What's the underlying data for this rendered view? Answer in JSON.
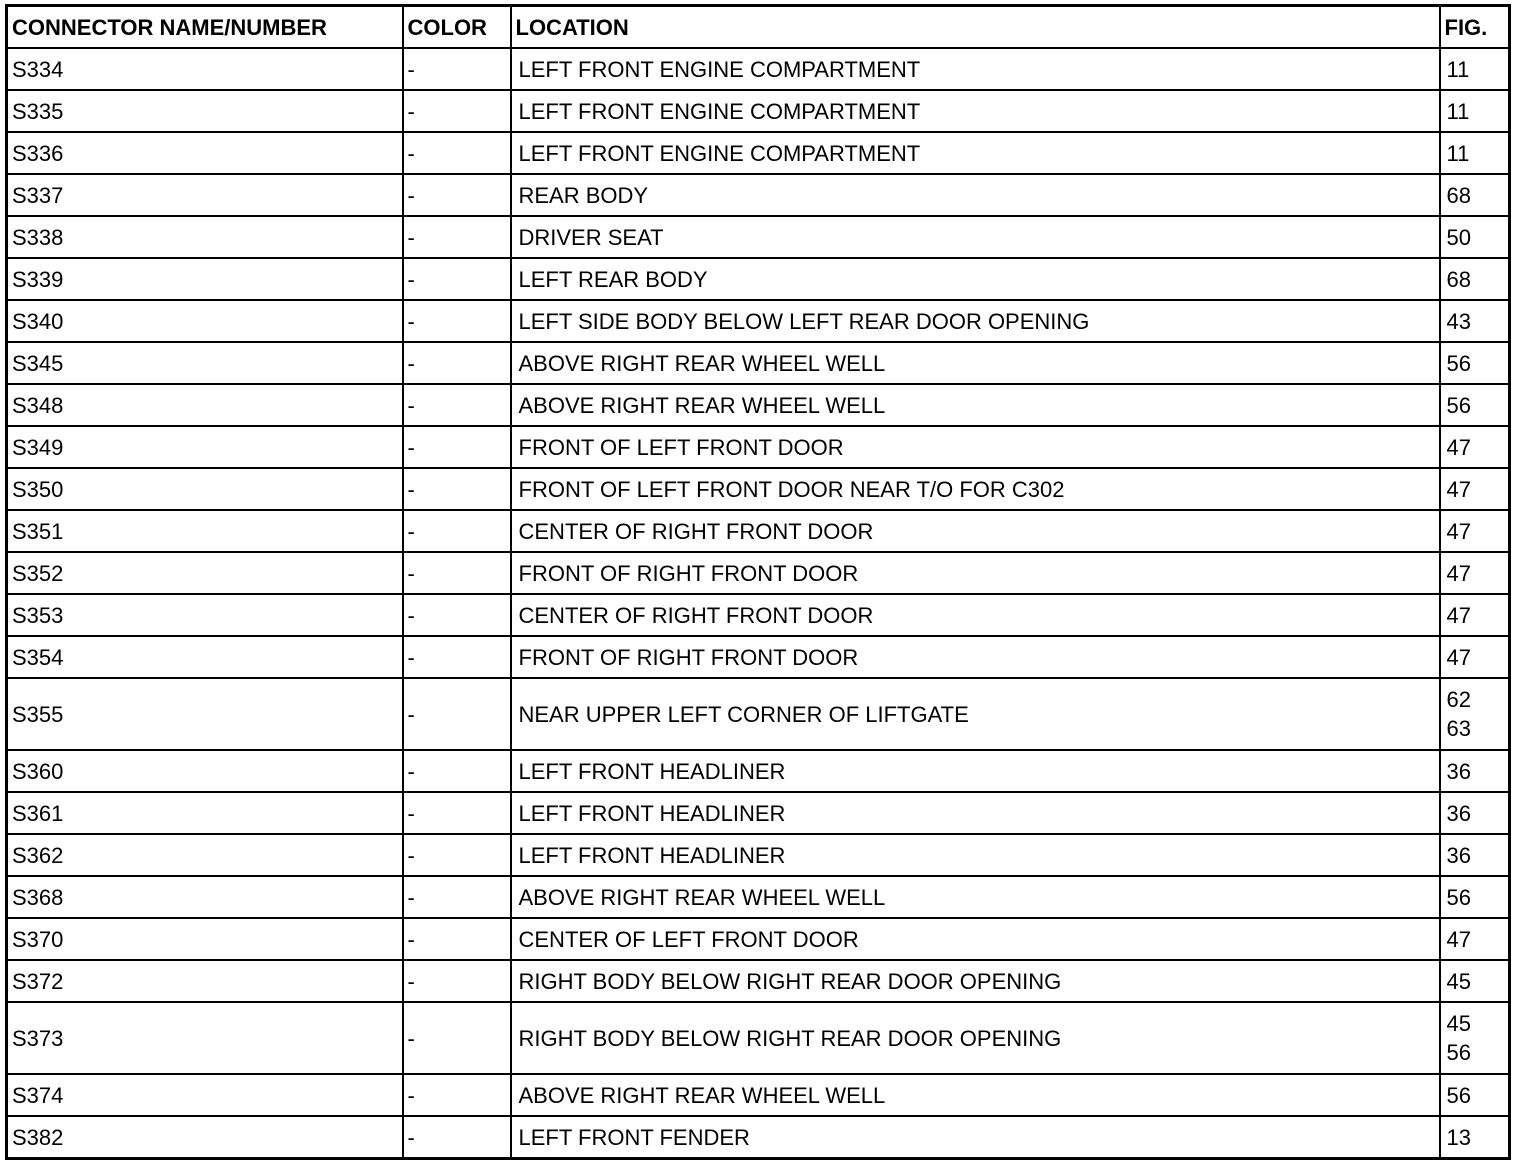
{
  "headers": {
    "name": "CONNECTOR NAME/NUMBER",
    "color": "COLOR",
    "location": "LOCATION",
    "fig": "FIG."
  },
  "rows": [
    {
      "name": "S334",
      "color": "-",
      "location": "LEFT FRONT ENGINE COMPARTMENT",
      "fig": [
        "11"
      ]
    },
    {
      "name": "S335",
      "color": "-",
      "location": "LEFT FRONT ENGINE COMPARTMENT",
      "fig": [
        "11"
      ]
    },
    {
      "name": "S336",
      "color": "-",
      "location": "LEFT FRONT ENGINE COMPARTMENT",
      "fig": [
        "11"
      ]
    },
    {
      "name": "S337",
      "color": "-",
      "location": "REAR BODY",
      "fig": [
        "68"
      ]
    },
    {
      "name": "S338",
      "color": "-",
      "location": "DRIVER SEAT",
      "fig": [
        "50"
      ]
    },
    {
      "name": "S339",
      "color": "-",
      "location": "LEFT REAR BODY",
      "fig": [
        "68"
      ]
    },
    {
      "name": "S340",
      "color": "-",
      "location": "LEFT SIDE BODY BELOW LEFT REAR DOOR OPENING",
      "fig": [
        "43"
      ]
    },
    {
      "name": "S345",
      "color": "-",
      "location": "ABOVE RIGHT REAR WHEEL WELL",
      "fig": [
        "56"
      ]
    },
    {
      "name": "S348",
      "color": "-",
      "location": "ABOVE RIGHT REAR WHEEL WELL",
      "fig": [
        "56"
      ]
    },
    {
      "name": "S349",
      "color": "-",
      "location": "FRONT OF LEFT FRONT DOOR",
      "fig": [
        "47"
      ]
    },
    {
      "name": "S350",
      "color": "-",
      "location": "FRONT OF LEFT FRONT DOOR NEAR T/O FOR C302",
      "fig": [
        "47"
      ]
    },
    {
      "name": "S351",
      "color": "-",
      "location": "CENTER OF RIGHT FRONT DOOR",
      "fig": [
        "47"
      ]
    },
    {
      "name": "S352",
      "color": "-",
      "location": "FRONT OF RIGHT FRONT DOOR",
      "fig": [
        "47"
      ]
    },
    {
      "name": "S353",
      "color": "-",
      "location": "CENTER OF RIGHT FRONT DOOR",
      "fig": [
        "47"
      ]
    },
    {
      "name": "S354",
      "color": "-",
      "location": "FRONT OF RIGHT FRONT DOOR",
      "fig": [
        "47"
      ]
    },
    {
      "name": "S355",
      "color": "-",
      "location": "NEAR UPPER LEFT CORNER OF LIFTGATE",
      "fig": [
        "62",
        "63"
      ]
    },
    {
      "name": "S360",
      "color": "-",
      "location": "LEFT FRONT HEADLINER",
      "fig": [
        "36"
      ]
    },
    {
      "name": "S361",
      "color": "-",
      "location": "LEFT FRONT HEADLINER",
      "fig": [
        "36"
      ]
    },
    {
      "name": "S362",
      "color": "-",
      "location": "LEFT FRONT HEADLINER",
      "fig": [
        "36"
      ]
    },
    {
      "name": "S368",
      "color": "-",
      "location": "ABOVE RIGHT REAR WHEEL WELL",
      "fig": [
        "56"
      ]
    },
    {
      "name": "S370",
      "color": "-",
      "location": "CENTER OF LEFT FRONT DOOR",
      "fig": [
        "47"
      ]
    },
    {
      "name": "S372",
      "color": "-",
      "location": "RIGHT BODY BELOW RIGHT REAR DOOR OPENING",
      "fig": [
        "45"
      ]
    },
    {
      "name": "S373",
      "color": "-",
      "location": "RIGHT BODY BELOW RIGHT REAR DOOR OPENING",
      "fig": [
        "45",
        "56"
      ]
    },
    {
      "name": "S374",
      "color": "-",
      "location": "ABOVE RIGHT REAR WHEEL WELL",
      "fig": [
        "56"
      ]
    },
    {
      "name": "S382",
      "color": "-",
      "location": "LEFT FRONT FENDER",
      "fig": [
        "13"
      ]
    }
  ]
}
